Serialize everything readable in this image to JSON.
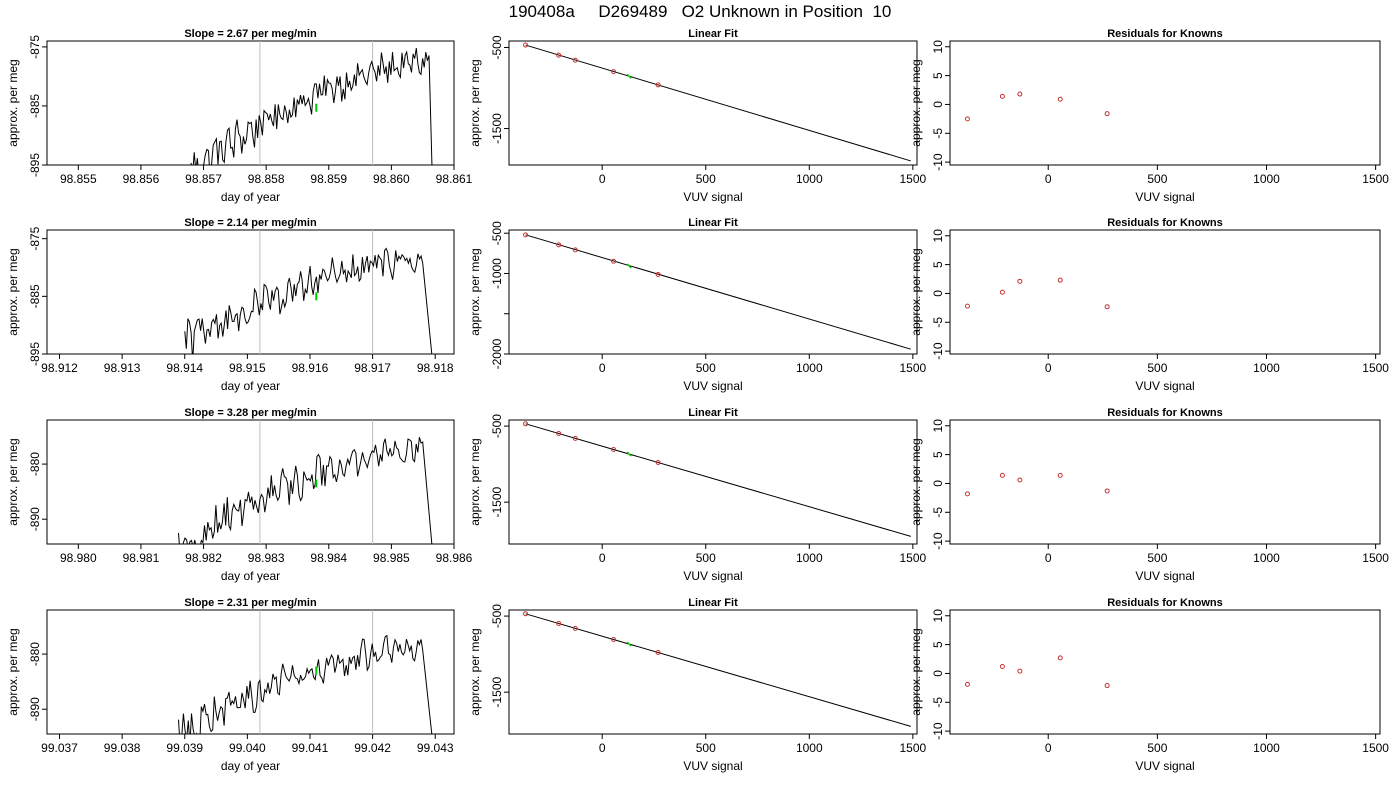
{
  "page_title": "190408a     D269489   O2 Unknown in Position  10",
  "colors": {
    "trace": "#000000",
    "green": "#00cc00",
    "red": "#c83232",
    "vline": "#bebebe"
  },
  "chart_data": [
    {
      "row": 1,
      "type": "line",
      "title": "Slope =  2.67  per meg/min",
      "xlabel": "day of year",
      "ylabel": "approx. per meg",
      "xlim": [
        98.8545,
        98.861
      ],
      "ylim": [
        -895,
        -874
      ],
      "xticks": [
        98.855,
        98.856,
        98.857,
        98.858,
        98.859,
        98.86,
        98.861
      ],
      "xtick_labels": [
        "98.855",
        "98.856",
        "98.857",
        "98.858",
        "98.859",
        "98.860",
        "98.861"
      ],
      "yticks": [
        -875,
        -885,
        -895
      ],
      "ytick_labels": [
        "-875",
        "-885",
        "-895"
      ],
      "vlines": [
        98.8579,
        98.8597
      ],
      "trace": {
        "x_start": 98.8568,
        "x_end": 98.8606,
        "y_start": -896,
        "y_end": -877.5,
        "drop_x": 98.86065,
        "drop_y": -896
      },
      "green_point": {
        "x": 98.8588,
        "y": -885.3
      }
    },
    {
      "row": 1,
      "type": "scatter",
      "title": "Linear Fit",
      "xlabel": "VUV signal",
      "ylabel": "approx. per meg",
      "xlim": [
        -450,
        1520
      ],
      "ylim": [
        -1950,
        -420
      ],
      "xticks": [
        0,
        500,
        1000,
        1500
      ],
      "xtick_labels": [
        "0",
        "500",
        "1000",
        "1500"
      ],
      "yticks": [
        -500,
        -1500
      ],
      "ytick_labels": [
        "-500",
        "-1500"
      ],
      "line": [
        [
          -370,
          -470
        ],
        [
          1490,
          -1900
        ]
      ],
      "knowns": [
        [
          -370,
          -470
        ],
        [
          -210,
          -595
        ],
        [
          -130,
          -657
        ],
        [
          55,
          -798
        ],
        [
          270,
          -962
        ]
      ],
      "green_point": [
        130,
        -856
      ]
    },
    {
      "row": 1,
      "type": "scatter",
      "title": "Residuals for Knowns",
      "xlabel": "VUV signal",
      "ylabel": "approx. per meg",
      "xlim": [
        -450,
        1520
      ],
      "ylim": [
        -10.5,
        11
      ],
      "xticks": [
        0,
        500,
        1000,
        1500
      ],
      "xtick_labels": [
        "0",
        "500",
        "1000",
        "1500"
      ],
      "yticks": [
        10,
        5,
        0,
        -5,
        -10
      ],
      "ytick_labels": [
        "10",
        "5",
        "0",
        "-5",
        "-10"
      ],
      "points": [
        [
          -370,
          -2.5
        ],
        [
          -210,
          1.4
        ],
        [
          -130,
          1.8
        ],
        [
          55,
          0.9
        ],
        [
          270,
          -1.6
        ]
      ]
    },
    {
      "row": 2,
      "type": "line",
      "title": "Slope =  2.14  per meg/min",
      "xlabel": "day of year",
      "ylabel": "approx. per meg",
      "xlim": [
        98.9118,
        98.9183
      ],
      "ylim": [
        -895,
        -873.5
      ],
      "xticks": [
        98.912,
        98.913,
        98.914,
        98.915,
        98.916,
        98.917,
        98.918
      ],
      "xtick_labels": [
        "98.912",
        "98.913",
        "98.914",
        "98.915",
        "98.916",
        "98.917",
        "98.918"
      ],
      "yticks": [
        -875,
        -885,
        -895
      ],
      "ytick_labels": [
        "-875",
        "-885",
        "-895"
      ],
      "vlines": [
        98.9152,
        98.917
      ],
      "trace": {
        "x_start": 98.914,
        "x_end": 98.9178,
        "y_start": -893,
        "y_end": -878.5,
        "drop_x": 98.91795,
        "drop_y": -895.5
      },
      "green_point": {
        "x": 98.9161,
        "y": -885
      }
    },
    {
      "row": 2,
      "type": "scatter",
      "title": "Linear Fit",
      "xlabel": "VUV signal",
      "ylabel": "approx. per meg",
      "xlim": [
        -450,
        1520
      ],
      "ylim": [
        -2000,
        -460
      ],
      "xticks": [
        0,
        500,
        1000,
        1500
      ],
      "xtick_labels": [
        "0",
        "500",
        "1000",
        "1500"
      ],
      "yticks": [
        -500,
        -1000,
        -1500,
        -2000
      ],
      "ytick_labels": [
        "-500",
        "-1000",
        "",
        "-2000"
      ],
      "line": [
        [
          -370,
          -520
        ],
        [
          1490,
          -1940
        ]
      ],
      "knowns": [
        [
          -370,
          -520
        ],
        [
          -210,
          -645
        ],
        [
          -130,
          -707
        ],
        [
          55,
          -848
        ],
        [
          270,
          -1012
        ]
      ],
      "green_point": [
        130,
        -906
      ]
    },
    {
      "row": 2,
      "type": "scatter",
      "title": "Residuals for Knowns",
      "xlabel": "VUV signal",
      "ylabel": "approx. per meg",
      "xlim": [
        -450,
        1520
      ],
      "ylim": [
        -10.5,
        11
      ],
      "xticks": [
        0,
        500,
        1000,
        1500
      ],
      "xtick_labels": [
        "0",
        "500",
        "1000",
        "1500"
      ],
      "yticks": [
        10,
        5,
        0,
        -5,
        -10
      ],
      "ytick_labels": [
        "10",
        "5",
        "0",
        "-5",
        "-10"
      ],
      "points": [
        [
          -370,
          -2.2
        ],
        [
          -210,
          0.2
        ],
        [
          -130,
          2.1
        ],
        [
          55,
          2.3
        ],
        [
          270,
          -2.3
        ]
      ]
    },
    {
      "row": 3,
      "type": "line",
      "title": "Slope =  3.28  per meg/min",
      "xlabel": "day of year",
      "ylabel": "approx. per meg",
      "xlim": [
        98.9795,
        98.986
      ],
      "ylim": [
        -894.5,
        -872
      ],
      "xticks": [
        98.98,
        98.981,
        98.982,
        98.983,
        98.984,
        98.985,
        98.986
      ],
      "xtick_labels": [
        "98.980",
        "98.981",
        "98.982",
        "98.983",
        "98.984",
        "98.985",
        "98.986"
      ],
      "yticks": [
        -880,
        -890
      ],
      "ytick_labels": [
        "-880",
        "-890"
      ],
      "vlines": [
        98.9829,
        98.9847
      ],
      "trace": {
        "x_start": 98.9816,
        "x_end": 98.9855,
        "y_start": -895,
        "y_end": -877,
        "drop_x": 98.98565,
        "drop_y": -895
      },
      "green_point": {
        "x": 98.9838,
        "y": -883.5
      }
    },
    {
      "row": 3,
      "type": "scatter",
      "title": "Linear Fit",
      "xlabel": "VUV signal",
      "ylabel": "approx. per meg",
      "xlim": [
        -450,
        1520
      ],
      "ylim": [
        -2050,
        -420
      ],
      "xticks": [
        0,
        500,
        1000,
        1500
      ],
      "xtick_labels": [
        "0",
        "500",
        "1000",
        "1500"
      ],
      "yticks": [
        -500,
        -1500
      ],
      "ytick_labels": [
        "-500",
        "-1500"
      ],
      "line": [
        [
          -370,
          -470
        ],
        [
          1490,
          -1950
        ]
      ],
      "knowns": [
        [
          -370,
          -470
        ],
        [
          -210,
          -598
        ],
        [
          -130,
          -662
        ],
        [
          55,
          -808
        ],
        [
          270,
          -979
        ]
      ],
      "green_point": [
        130,
        -868
      ]
    },
    {
      "row": 3,
      "type": "scatter",
      "title": "Residuals for Knowns",
      "xlabel": "VUV signal",
      "ylabel": "approx. per meg",
      "xlim": [
        -450,
        1520
      ],
      "ylim": [
        -10.5,
        11
      ],
      "xticks": [
        0,
        500,
        1000,
        1500
      ],
      "xtick_labels": [
        "0",
        "500",
        "1000",
        "1500"
      ],
      "yticks": [
        10,
        5,
        0,
        -5,
        -10
      ],
      "ytick_labels": [
        "10",
        "5",
        "0",
        "-5",
        "-10"
      ],
      "points": [
        [
          -370,
          -1.8
        ],
        [
          -210,
          1.4
        ],
        [
          -130,
          0.6
        ],
        [
          55,
          1.4
        ],
        [
          270,
          -1.3
        ]
      ]
    },
    {
      "row": 4,
      "type": "line",
      "title": "Slope =  2.31  per meg/min",
      "xlabel": "day of year",
      "ylabel": "approx. per meg",
      "xlim": [
        99.0368,
        99.0433
      ],
      "ylim": [
        -894.5,
        -872
      ],
      "xticks": [
        99.037,
        99.038,
        99.039,
        99.04,
        99.041,
        99.042,
        99.043
      ],
      "xtick_labels": [
        "99.037",
        "99.038",
        "99.039",
        "99.040",
        "99.041",
        "99.042",
        "99.043"
      ],
      "yticks": [
        -880,
        -890
      ],
      "ytick_labels": [
        "-880",
        "-890"
      ],
      "vlines": [
        99.0402,
        99.042
      ],
      "trace": {
        "x_start": 99.0389,
        "x_end": 99.0428,
        "y_start": -895,
        "y_end": -878.5,
        "drop_x": 99.04295,
        "drop_y": -895
      },
      "green_point": {
        "x": 99.0411,
        "y": -883
      }
    },
    {
      "row": 4,
      "type": "scatter",
      "title": "Linear Fit",
      "xlabel": "VUV signal",
      "ylabel": "approx. per meg",
      "xlim": [
        -450,
        1520
      ],
      "ylim": [
        -2050,
        -420
      ],
      "xticks": [
        0,
        500,
        1000,
        1500
      ],
      "xtick_labels": [
        "0",
        "500",
        "1000",
        "1500"
      ],
      "yticks": [
        -500,
        -1500
      ],
      "ytick_labels": [
        "-500",
        "-1500"
      ],
      "line": [
        [
          -370,
          -470
        ],
        [
          1490,
          -1950
        ]
      ],
      "knowns": [
        [
          -370,
          -470
        ],
        [
          -210,
          -598
        ],
        [
          -130,
          -662
        ],
        [
          55,
          -808
        ],
        [
          270,
          -979
        ]
      ],
      "green_point": [
        130,
        -868
      ]
    },
    {
      "row": 4,
      "type": "scatter",
      "title": "Residuals for Knowns",
      "xlabel": "VUV signal",
      "ylabel": "approx. per meg",
      "xlim": [
        -450,
        1520
      ],
      "ylim": [
        -10.5,
        11
      ],
      "xticks": [
        0,
        500,
        1000,
        1500
      ],
      "xtick_labels": [
        "0",
        "500",
        "1000",
        "1500"
      ],
      "yticks": [
        10,
        5,
        0,
        -5,
        -10
      ],
      "ytick_labels": [
        "10",
        "5",
        "0",
        "-5",
        "-10"
      ],
      "points": [
        [
          -370,
          -1.9
        ],
        [
          -210,
          1.2
        ],
        [
          -130,
          0.4
        ],
        [
          55,
          2.7
        ],
        [
          270,
          -2.1
        ]
      ]
    }
  ]
}
